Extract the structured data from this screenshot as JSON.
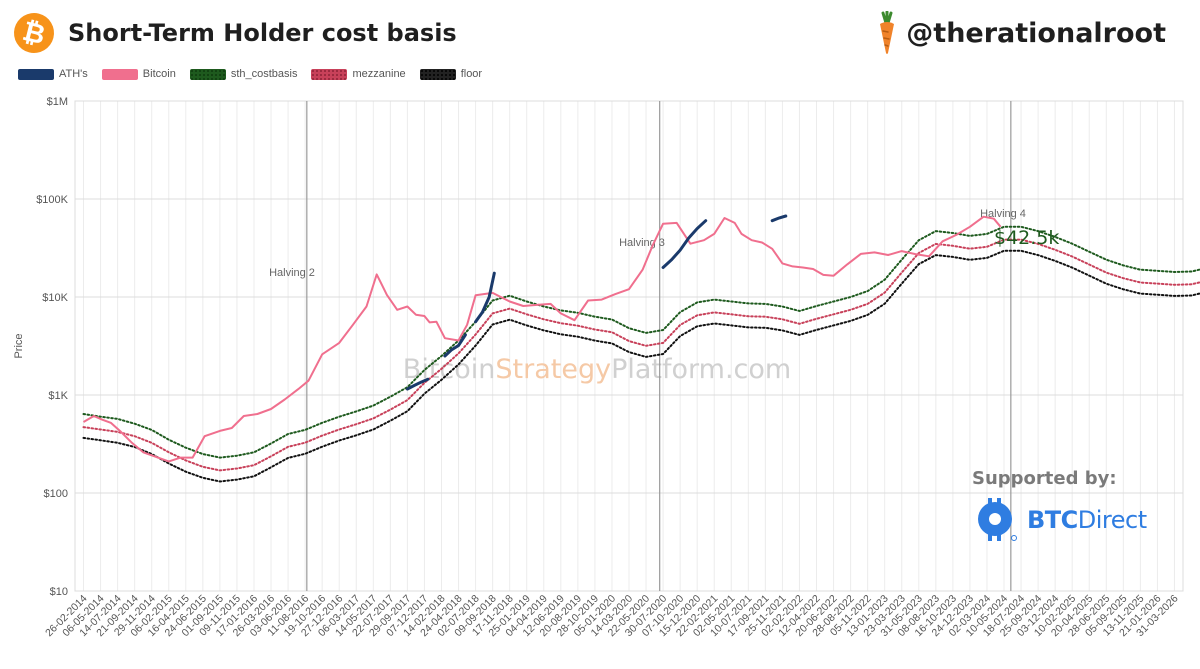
{
  "header": {
    "title": "Short-Term Holder cost basis",
    "handle": "@therationalroot",
    "bitcoin_logo_icon": "bitcoin-logo-icon",
    "carrot_icon": "carrot-icon"
  },
  "legend": [
    {
      "label": "ATH's",
      "color": "#1a3a6b"
    },
    {
      "label": "Bitcoin",
      "color": "#f06f8e"
    },
    {
      "label": "sth_costbasis",
      "color": "#1e5a1e"
    },
    {
      "label": "mezzanine",
      "color": "#c8415a"
    },
    {
      "label": "floor",
      "color": "#111111"
    }
  ],
  "watermark": {
    "part1": "Bitcoin",
    "part2": "Strategy",
    "part3": "Platform.com"
  },
  "sponsor": {
    "label": "Supported by:",
    "brand_bold": "BTC",
    "brand_rest": "Direct",
    "color": "#2f7de1"
  },
  "chart_data": {
    "type": "line",
    "title": "Short-Term Holder cost basis",
    "ylabel": "Price",
    "y_scale": "log",
    "ylim": [
      10,
      1000000
    ],
    "y_ticks": [
      {
        "value": 10,
        "label": "$10"
      },
      {
        "value": 100,
        "label": "$100"
      },
      {
        "value": 1000,
        "label": "$1K"
      },
      {
        "value": 10000,
        "label": "$10K"
      },
      {
        "value": 100000,
        "label": "$100K"
      },
      {
        "value": 1000000,
        "label": "$1M"
      }
    ],
    "x_tick_labels": [
      "26-02-2014",
      "06-05-2014",
      "14-07-2014",
      "21-09-2014",
      "29-11-2014",
      "06-02-2015",
      "16-04-2015",
      "24-06-2015",
      "01-09-2015",
      "09-11-2015",
      "17-01-2016",
      "26-03-2016",
      "03-06-2016",
      "11-08-2016",
      "19-10-2016",
      "27-12-2016",
      "06-03-2017",
      "14-05-2017",
      "22-07-2017",
      "29-09-2017",
      "07-12-2017",
      "14-02-2018",
      "24-04-2018",
      "02-07-2018",
      "09-09-2018",
      "17-11-2018",
      "25-01-2019",
      "04-04-2019",
      "12-06-2019",
      "20-08-2019",
      "28-10-2019",
      "05-01-2020",
      "14-03-2020",
      "22-05-2020",
      "30-07-2020",
      "07-10-2020",
      "15-12-2020",
      "22-02-2021",
      "02-05-2021",
      "10-07-2021",
      "17-09-2021",
      "25-11-2021",
      "02-02-2022",
      "12-04-2022",
      "20-06-2022",
      "28-08-2022",
      "05-11-2022",
      "13-01-2023",
      "23-03-2023",
      "31-05-2023",
      "08-08-2023",
      "16-10-2023",
      "24-12-2023",
      "02-03-2024",
      "10-05-2024",
      "18-07-2024",
      "25-09-2024",
      "03-12-2024",
      "10-02-2025",
      "20-04-2025",
      "28-06-2025",
      "05-09-2025",
      "13-11-2025",
      "21-01-2026",
      "31-03-2026"
    ],
    "annotations": [
      {
        "label": "Halving 2",
        "x_index": 13.1
      },
      {
        "label": "Halving 3",
        "x_index": 33.8
      },
      {
        "label": "Halving 4",
        "x_index": 54.4
      }
    ],
    "callout": {
      "label": "$42.5k",
      "x_index": 54.4,
      "value": 42500,
      "color": "#1e5a1e"
    },
    "grid": true,
    "series": [
      {
        "name": "Bitcoin",
        "color": "#f06f8e",
        "x_index": [
          0,
          0.6,
          1.1,
          1.6,
          2.2,
          2.8,
          3.5,
          4.2,
          5,
          5.7,
          6.4,
          7.1,
          8,
          8.7,
          9.4,
          10.2,
          11,
          11.8,
          12.6,
          13.2,
          14,
          15,
          15.8,
          16.6,
          17.2,
          17.8,
          18.4,
          19,
          19.5,
          20,
          20.3,
          20.7,
          21.2,
          22,
          22.5,
          23,
          24,
          25,
          25.8,
          26.6,
          27.4,
          28,
          28.8,
          29.6,
          30.4,
          31.2,
          32,
          32.8,
          33.4,
          34,
          34.8,
          35.6,
          36.4,
          37,
          37.6,
          38.2,
          38.6,
          39.2,
          39.8,
          40.4,
          41,
          41.6,
          42.2,
          42.8,
          43.4,
          44,
          44.8,
          45.6,
          46.4,
          47.2,
          48,
          48.8,
          49.6,
          50.4,
          51.2,
          52,
          52.8,
          53.4,
          53.8
        ],
        "values": [
          530,
          610,
          560,
          520,
          420,
          330,
          260,
          235,
          210,
          230,
          230,
          380,
          430,
          460,
          610,
          640,
          720,
          900,
          1150,
          1400,
          2600,
          3400,
          5200,
          8000,
          17000,
          10500,
          7400,
          8000,
          6600,
          6400,
          5500,
          5600,
          3800,
          3600,
          5200,
          10400,
          11000,
          9000,
          8100,
          8300,
          8500,
          6800,
          5800,
          9200,
          9400,
          10700,
          12000,
          19000,
          34000,
          56000,
          57000,
          35000,
          38000,
          44000,
          64000,
          57000,
          44000,
          38000,
          36000,
          31000,
          22000,
          20500,
          20000,
          19300,
          16800,
          16500,
          21500,
          27500,
          28500,
          26800,
          29400,
          27400,
          26000,
          37000,
          43000,
          52000,
          66000,
          63000,
          52000
        ]
      },
      {
        "name": "sth_costbasis",
        "color": "#1e5a1e",
        "x_index": [
          0,
          1,
          2,
          3,
          4,
          5,
          6,
          7,
          8,
          9,
          10,
          11,
          12,
          13,
          14,
          15,
          16,
          17,
          18,
          19,
          20,
          21,
          22,
          23,
          24,
          25,
          26,
          27,
          28,
          29,
          30,
          31,
          32,
          33,
          34,
          35,
          36,
          37,
          38,
          39,
          40,
          41,
          42,
          43,
          44,
          45,
          46,
          47,
          48,
          49,
          50,
          51,
          52,
          53,
          54,
          55,
          56,
          57,
          58,
          59,
          60,
          61,
          62,
          63,
          64,
          65,
          66,
          67,
          68,
          69,
          70,
          71,
          72,
          73,
          74,
          75,
          76,
          77,
          78
        ],
        "values": [
          640,
          600,
          570,
          510,
          440,
          350,
          290,
          250,
          230,
          240,
          260,
          320,
          400,
          440,
          520,
          600,
          680,
          780,
          960,
          1200,
          1800,
          2500,
          3600,
          5600,
          9200,
          10300,
          9000,
          8000,
          7300,
          6900,
          6300,
          5900,
          4800,
          4300,
          4600,
          7000,
          8800,
          9400,
          9000,
          8600,
          8500,
          8000,
          7200,
          8100,
          9000,
          10000,
          11500,
          15000,
          24000,
          38000,
          47000,
          45000,
          42000,
          44000,
          52000,
          52000,
          47000,
          41000,
          35000,
          29000,
          24000,
          21000,
          19000,
          18500,
          18000,
          18200,
          20000,
          23000,
          26000,
          27000,
          27500,
          28000,
          28500,
          32000,
          37000,
          43000,
          50000,
          56000,
          58000
        ]
      },
      {
        "name": "mezzanine",
        "color": "#c8415a",
        "x_index": [
          0,
          1,
          2,
          3,
          4,
          5,
          6,
          7,
          8,
          9,
          10,
          11,
          12,
          13,
          14,
          15,
          16,
          17,
          18,
          19,
          20,
          21,
          22,
          23,
          24,
          25,
          26,
          27,
          28,
          29,
          30,
          31,
          32,
          33,
          34,
          35,
          36,
          37,
          38,
          39,
          40,
          41,
          42,
          43,
          44,
          45,
          46,
          47,
          48,
          49,
          50,
          51,
          52,
          53,
          54,
          55,
          56,
          57,
          58,
          59,
          60,
          61,
          62,
          63,
          64,
          65,
          66,
          67,
          68,
          69,
          70,
          71,
          72,
          73,
          74,
          75,
          76,
          77,
          78
        ],
        "values": [
          470,
          445,
          420,
          380,
          325,
          260,
          215,
          185,
          170,
          178,
          192,
          237,
          296,
          326,
          385,
          445,
          503,
          577,
          710,
          888,
          1330,
          1850,
          2660,
          4140,
          6800,
          7620,
          6660,
          5920,
          5400,
          5100,
          4660,
          4370,
          3550,
          3180,
          3400,
          5180,
          6510,
          6960,
          6660,
          6360,
          6290,
          5920,
          5330,
          5990,
          6660,
          7400,
          8510,
          11100,
          17760,
          28120,
          34780,
          33300,
          31080,
          32560,
          38480,
          38480,
          34780,
          30340,
          25900,
          21460,
          17760,
          15540,
          14060,
          13690,
          13320,
          13470,
          14800,
          17020,
          19240,
          19980,
          20350,
          20720,
          21090,
          23680,
          27380,
          31820,
          37000,
          41440,
          42920
        ]
      },
      {
        "name": "floor",
        "color": "#111111",
        "x_index": [
          0,
          1,
          2,
          3,
          4,
          5,
          6,
          7,
          8,
          9,
          10,
          11,
          12,
          13,
          14,
          15,
          16,
          17,
          18,
          19,
          20,
          21,
          22,
          23,
          24,
          25,
          26,
          27,
          28,
          29,
          30,
          31,
          32,
          33,
          34,
          35,
          36,
          37,
          38,
          39,
          40,
          41,
          42,
          43,
          44,
          45,
          46,
          47,
          48,
          49,
          50,
          51,
          52,
          53,
          54,
          55,
          56,
          57,
          58,
          59,
          60,
          61,
          62,
          63,
          64,
          65,
          66,
          67,
          68,
          69,
          70,
          71,
          72,
          73,
          74,
          75,
          76,
          77,
          78
        ],
        "values": [
          365,
          345,
          325,
          295,
          250,
          200,
          165,
          143,
          131,
          137,
          148,
          183,
          228,
          251,
          297,
          343,
          388,
          445,
          547,
          684,
          1030,
          1430,
          2050,
          3190,
          5240,
          5870,
          5130,
          4560,
          4160,
          3930,
          3590,
          3360,
          2740,
          2450,
          2620,
          3990,
          5020,
          5360,
          5130,
          4900,
          4850,
          4560,
          4100,
          4620,
          5130,
          5700,
          6560,
          8550,
          13680,
          21660,
          26790,
          25650,
          23940,
          25080,
          29640,
          29640,
          26790,
          23370,
          19950,
          16530,
          13680,
          11970,
          10830,
          10550,
          10260,
          10370,
          11400,
          13110,
          14820,
          15390,
          15680,
          15960,
          16250,
          18240,
          21090,
          24510,
          28500,
          31920,
          33060
        ]
      },
      {
        "name": "ATH's",
        "color": "#1a3a6b",
        "segments": [
          {
            "x_index": [
              19.0,
              19.4,
              19.8,
              20.2
            ],
            "values": [
              1150,
              1250,
              1350,
              1450
            ]
          },
          {
            "x_index": [
              21.2,
              21.6,
              22.0,
              22.4
            ],
            "values": [
              2500,
              2900,
              3200,
              4100
            ]
          },
          {
            "x_index": [
              23.0,
              23.4,
              23.8,
              24.1
            ],
            "values": [
              5600,
              7000,
              10000,
              17500
            ]
          },
          {
            "x_index": [
              34.0,
              34.5,
              35.0,
              35.5,
              36.0,
              36.5
            ],
            "values": [
              20000,
              24000,
              30000,
              40000,
              50000,
              60000
            ]
          },
          {
            "x_index": [
              40.4,
              40.8,
              41.2
            ],
            "values": [
              60000,
              64000,
              67000
            ]
          }
        ]
      }
    ]
  }
}
